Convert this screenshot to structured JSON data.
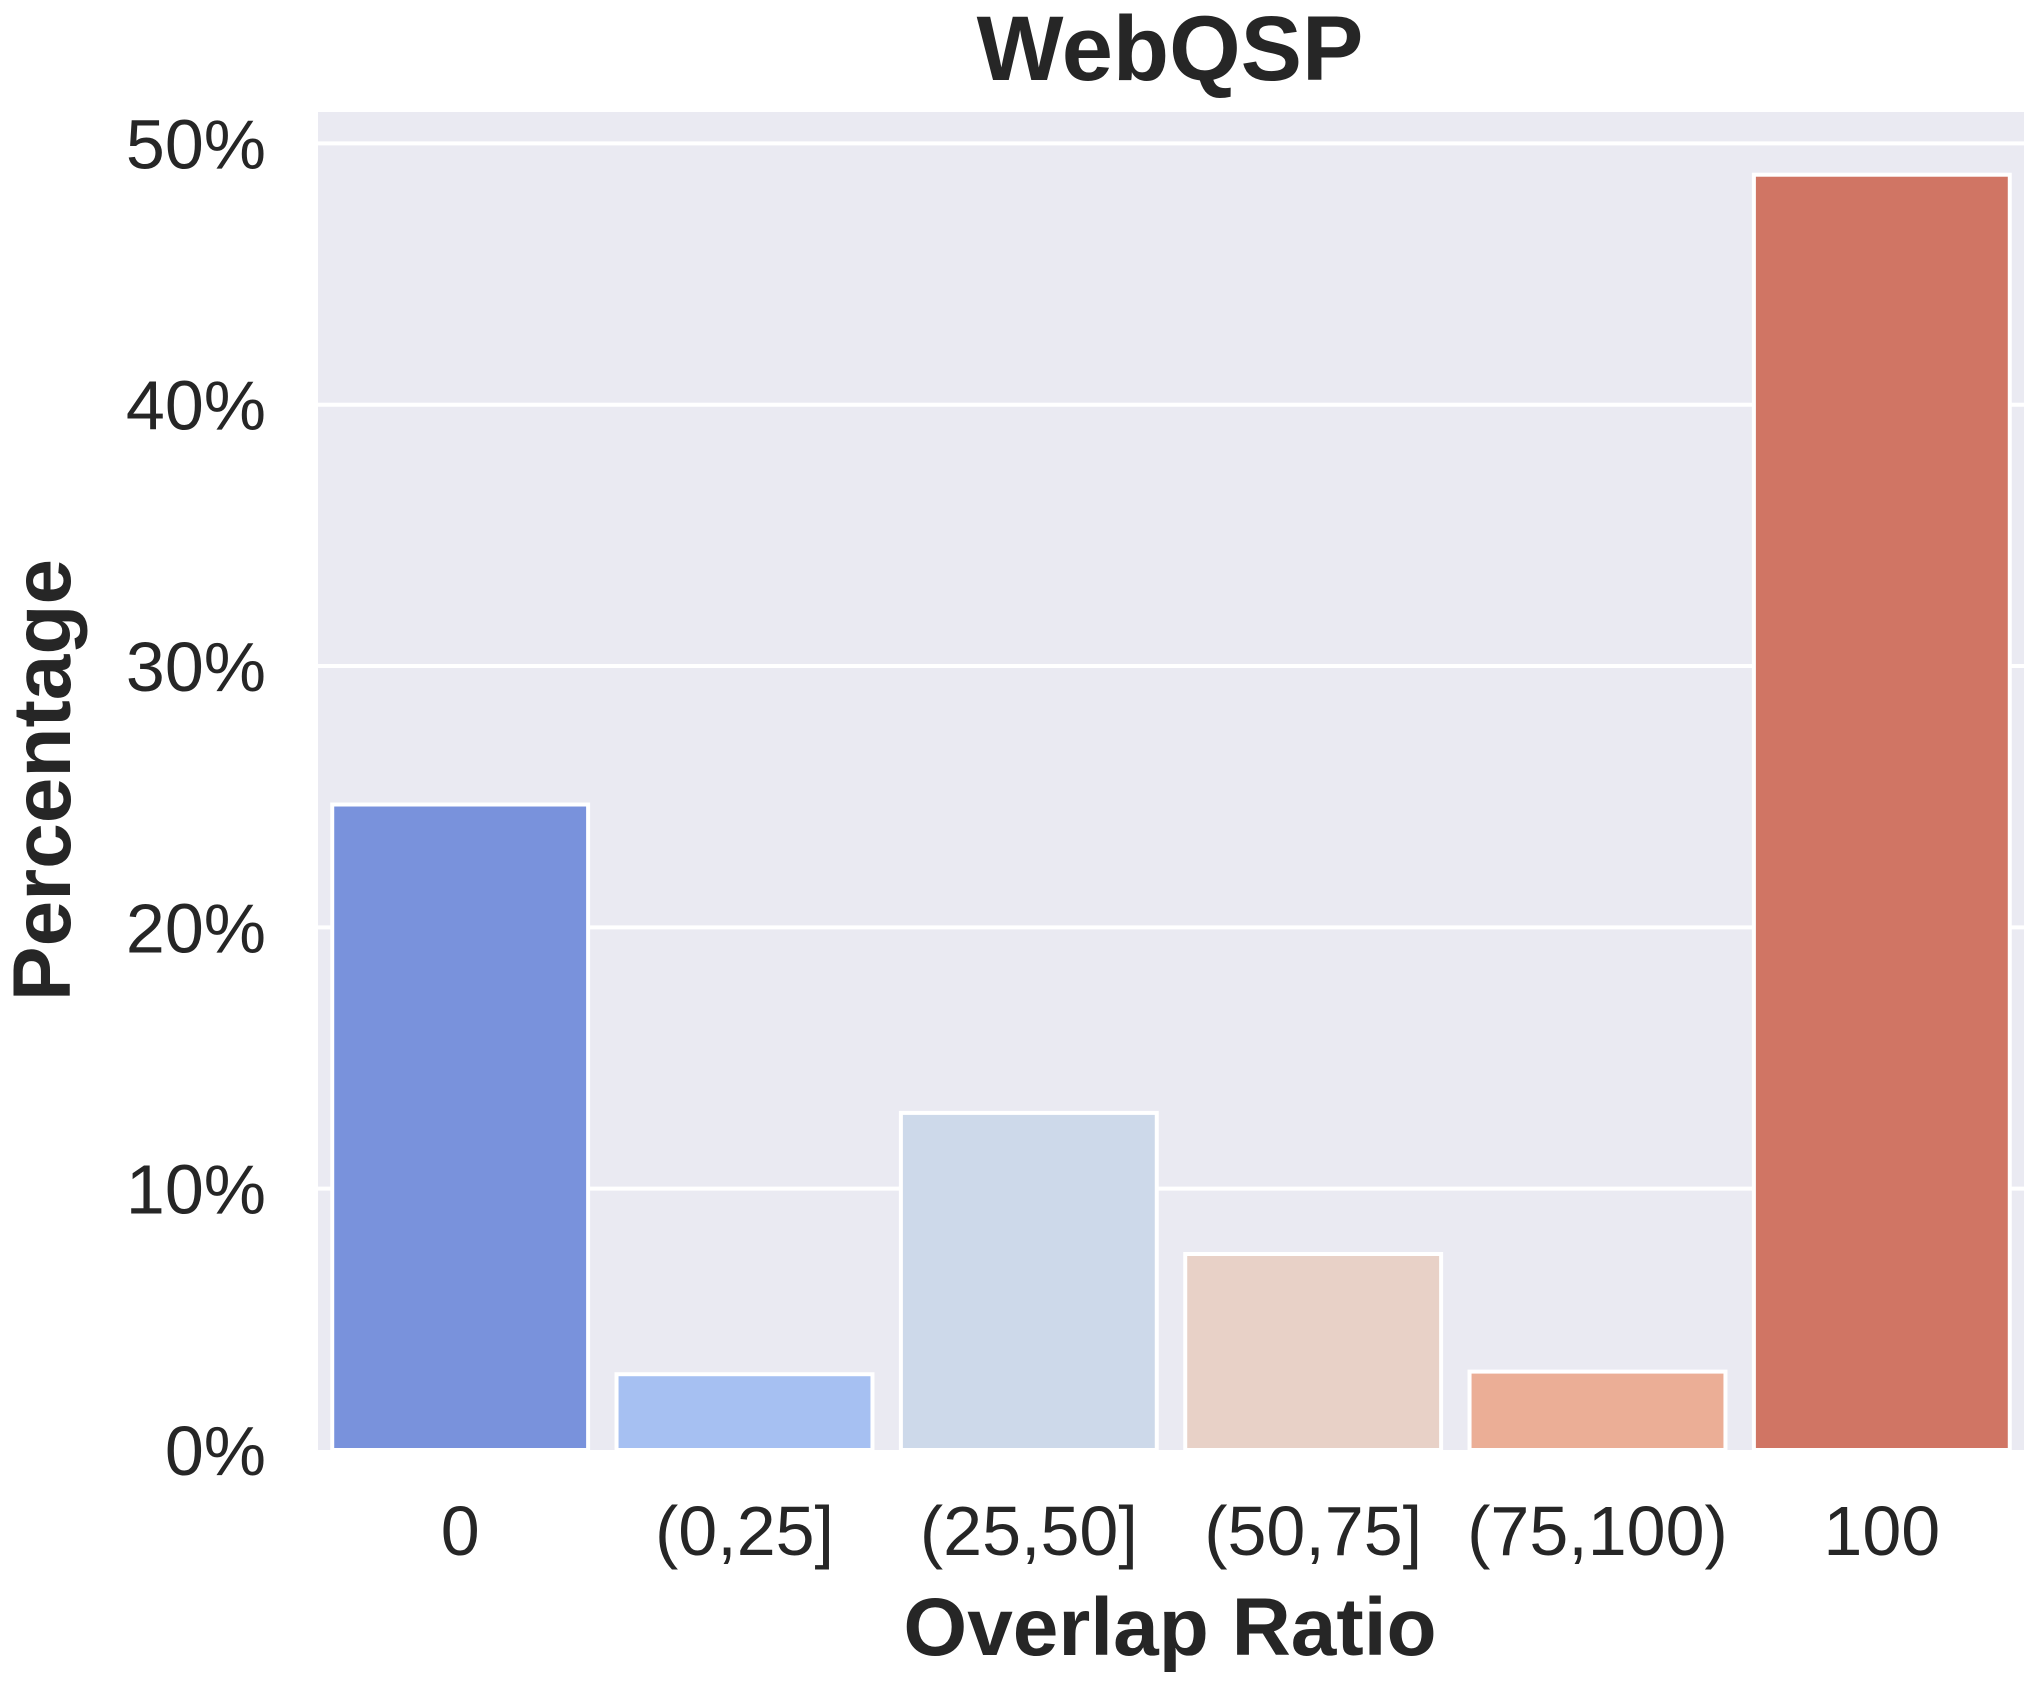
{
  "chart_data": {
    "type": "bar",
    "title": "WebQSP",
    "xlabel": "Overlap Ratio",
    "ylabel": "Percentage",
    "categories": [
      "0",
      "(0,25]",
      "(25,50]",
      "(50,75]",
      "(75,100)",
      "100"
    ],
    "values": [
      24.7,
      2.9,
      12.9,
      7.5,
      3.0,
      48.8
    ],
    "yticks": [
      0,
      10,
      20,
      30,
      40,
      50
    ],
    "ytick_labels": [
      "0%",
      "10%",
      "20%",
      "30%",
      "40%",
      "50%"
    ],
    "ylim": [
      0,
      51.2
    ],
    "grid": true,
    "colors": {
      "plot_background": "#eaeaf2",
      "grid": "#ffffff",
      "bar_edge": "#ffffff",
      "bars": [
        "#7992dc",
        "#a6c0f2",
        "#cdd9ea",
        "#e8d1c7",
        "#ebae96",
        "#d07564"
      ]
    }
  }
}
